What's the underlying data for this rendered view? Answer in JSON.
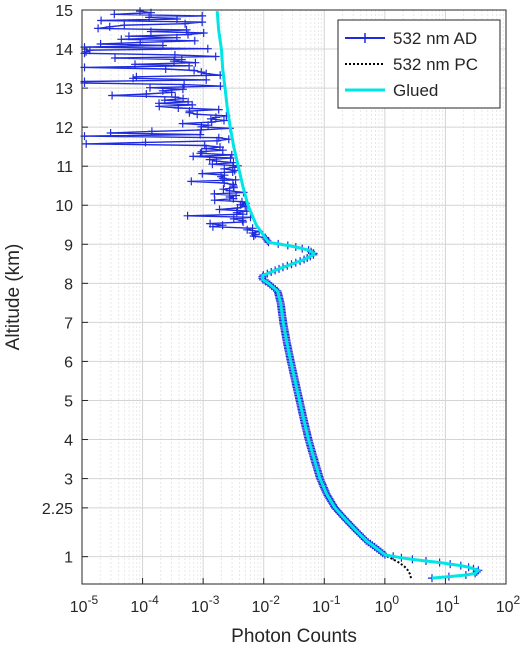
{
  "chart_data": {
    "type": "line",
    "title": "",
    "xlabel": "Photon Counts",
    "ylabel": "Altitude (km)",
    "x_scale": "log",
    "xlim": [
      1e-05,
      100
    ],
    "ylim": [
      0.3,
      15
    ],
    "x_ticks": [
      {
        "base": "10",
        "exp": "-5"
      },
      {
        "base": "10",
        "exp": "-4"
      },
      {
        "base": "10",
        "exp": "-3"
      },
      {
        "base": "10",
        "exp": "-2"
      },
      {
        "base": "10",
        "exp": "-1"
      },
      {
        "base": "10",
        "exp": "0"
      },
      {
        "base": "10",
        "exp": "1"
      },
      {
        "base": "10",
        "exp": "2"
      }
    ],
    "y_ticks": [
      "1",
      "2.25",
      "3",
      "4",
      "5",
      "6",
      "7",
      "8",
      "9",
      "10",
      "11",
      "12",
      "13",
      "14",
      "15"
    ],
    "grid": true,
    "legend_position": "top-right",
    "legend": [
      "532 nm AD",
      "532 nm PC",
      "Glued"
    ],
    "colors": {
      "ad": "#1f2bdc",
      "pc": "#000000",
      "glued": "#00e5e5"
    },
    "profile": {
      "altitude_km": [
        0.45,
        0.55,
        0.65,
        0.75,
        0.85,
        0.95,
        1.05,
        1.2,
        1.4,
        1.7,
        2.0,
        2.25,
        2.6,
        3.0,
        3.5,
        4.0,
        4.5,
        5.0,
        5.5,
        6.0,
        6.5,
        7.0,
        7.5,
        7.8,
        8.0,
        8.1,
        8.2,
        8.4,
        8.6,
        8.75,
        8.85,
        8.95,
        9.05,
        9.5,
        10.0,
        10.5,
        11.0,
        11.5,
        12.0,
        12.5,
        13.0,
        13.5,
        14.0,
        14.5,
        15.0
      ],
      "counts": [
        6,
        30,
        35,
        22,
        8,
        2.2,
        1.0,
        0.75,
        0.5,
        0.32,
        0.21,
        0.15,
        0.11,
        0.085,
        0.068,
        0.055,
        0.046,
        0.039,
        0.033,
        0.028,
        0.024,
        0.021,
        0.019,
        0.017,
        0.012,
        0.0095,
        0.0095,
        0.02,
        0.045,
        0.07,
        0.055,
        0.03,
        0.012,
        0.0075,
        0.0055,
        0.0045,
        0.0038,
        0.0032,
        0.0028,
        0.0025,
        0.0023,
        0.0021,
        0.002,
        0.0018,
        0.0017
      ]
    },
    "pc_low_altitude": {
      "altitude_km": [
        0.45,
        0.55,
        0.65,
        0.75,
        0.85,
        0.95,
        1.05,
        1.2
      ],
      "counts": [
        2.7,
        2.6,
        2.4,
        2.1,
        1.7,
        1.3,
        0.95,
        0.75
      ]
    }
  }
}
